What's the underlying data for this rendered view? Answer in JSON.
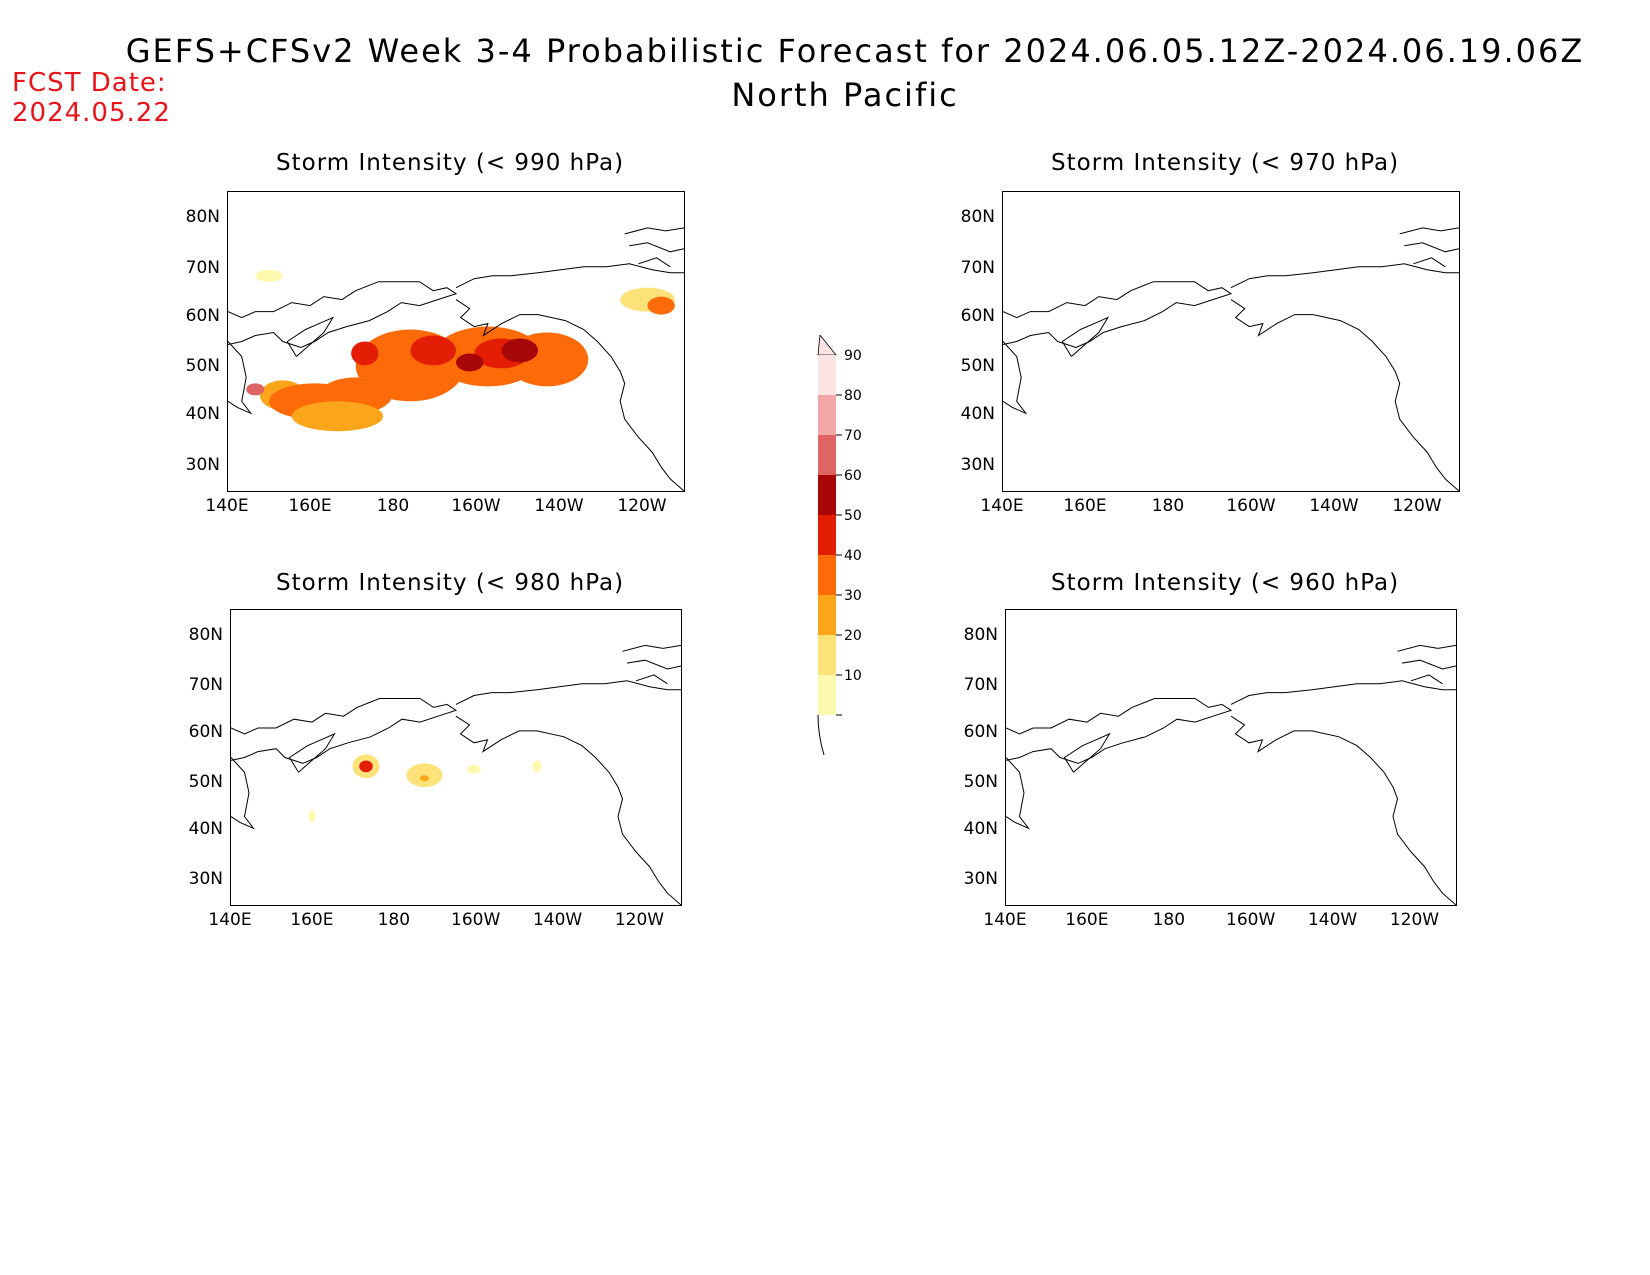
{
  "header": {
    "title_line1": "GEFS+CFSv2 Week 3-4 Probabilistic Forecast for 2024.06.05.12Z-2024.06.19.06Z",
    "title_line2": "North Pacific",
    "fcst_label": "FCST Date:",
    "fcst_date": "2024.05.22"
  },
  "axes": {
    "lat_ticks": [
      "80N",
      "70N",
      "60N",
      "50N",
      "40N",
      "30N"
    ],
    "lon_ticks": [
      "140E",
      "160E",
      "180",
      "160W",
      "140W",
      "120W"
    ]
  },
  "colorbar": {
    "levels": [
      "10",
      "20",
      "30",
      "40",
      "50",
      "60",
      "70",
      "80",
      "90"
    ],
    "colors": [
      "#fff9b0",
      "#fde27a",
      "#fba51a",
      "#fd6a08",
      "#e41e05",
      "#a80707",
      "#e06464",
      "#f4a7a7",
      "#fde4e4"
    ]
  },
  "panels": [
    {
      "id": "p990",
      "title": "Storm Intensity (< 990 hPa)"
    },
    {
      "id": "p970",
      "title": "Storm Intensity (< 970 hPa)"
    },
    {
      "id": "p980",
      "title": "Storm Intensity (< 980 hPa)"
    },
    {
      "id": "p960",
      "title": "Storm Intensity (< 960 hPa)"
    }
  ]
}
